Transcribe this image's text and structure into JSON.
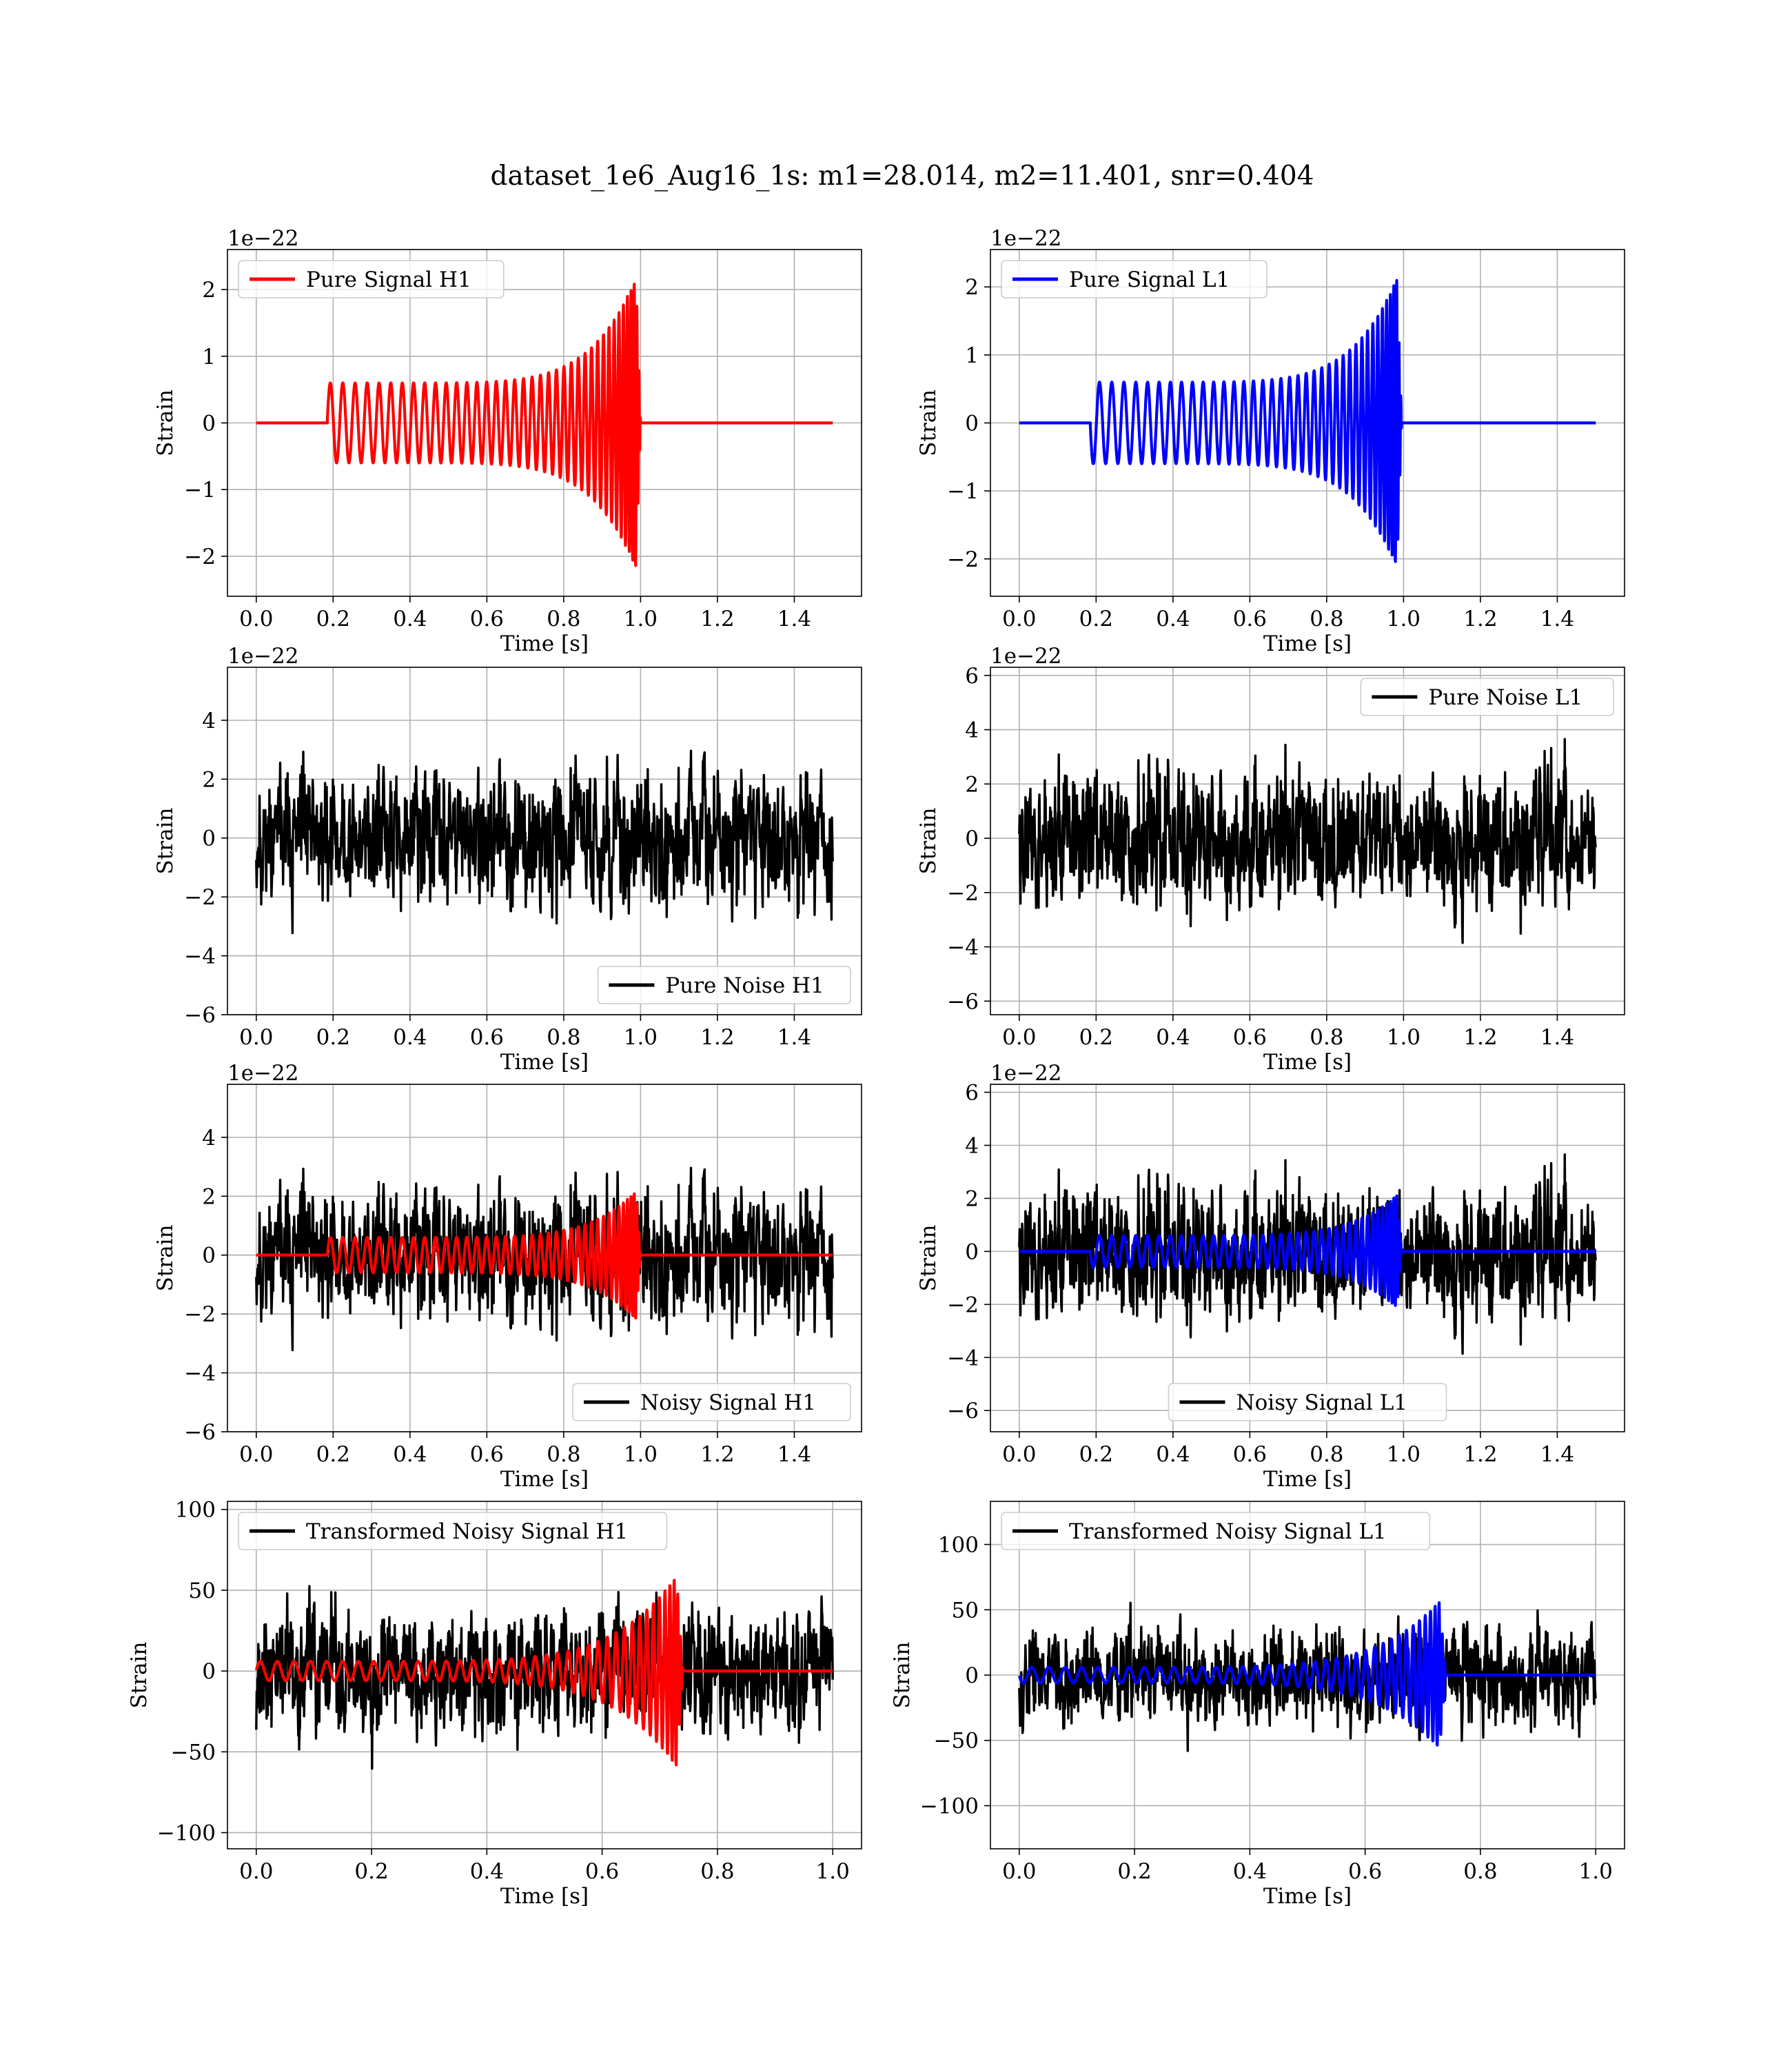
{
  "figure": {
    "title": "dataset_1e6_Aug16_1s: m1=28.014, m2=11.401, snr=0.404"
  },
  "colors": {
    "h1": "#ff0000",
    "l1": "#0000ff",
    "noise": "#000000"
  },
  "chart_data": [
    {
      "id": "pure-signal-h1",
      "type": "line",
      "xlabel": "Time [s]",
      "ylabel": "Strain",
      "offset_label": "1e−22",
      "xlim": [
        -0.075,
        1.575
      ],
      "ylim": [
        -2.6,
        2.6
      ],
      "xticks": [
        0.0,
        0.2,
        0.4,
        0.6,
        0.8,
        1.0,
        1.2,
        1.4
      ],
      "xtick_labels": [
        "0.0",
        "0.2",
        "0.4",
        "0.6",
        "0.8",
        "1.0",
        "1.2",
        "1.4"
      ],
      "yticks": [
        -2,
        -1,
        0,
        1,
        2
      ],
      "ytick_labels": [
        "−2",
        "−1",
        "0",
        "1",
        "2"
      ],
      "legend_loc": "upper left",
      "series": [
        {
          "name": "Pure Signal H1",
          "color": "#ff0000",
          "kind": "chirp",
          "t_start": 0.185,
          "t_end": 1.0,
          "x_end": 1.5,
          "start_amp": 0.6,
          "peak_amp": 2.35,
          "sign": 1,
          "n_cycles": 40
        }
      ]
    },
    {
      "id": "pure-signal-l1",
      "type": "line",
      "xlabel": "Time [s]",
      "ylabel": "Strain",
      "offset_label": "1e−22",
      "xlim": [
        -0.075,
        1.575
      ],
      "ylim": [
        -2.55,
        2.55
      ],
      "xticks": [
        0.0,
        0.2,
        0.4,
        0.6,
        0.8,
        1.0,
        1.2,
        1.4
      ],
      "xtick_labels": [
        "0.0",
        "0.2",
        "0.4",
        "0.6",
        "0.8",
        "1.0",
        "1.2",
        "1.4"
      ],
      "yticks": [
        -2,
        -1,
        0,
        1,
        2
      ],
      "ytick_labels": [
        "−2",
        "−1",
        "0",
        "1",
        "2"
      ],
      "legend_loc": "upper left",
      "series": [
        {
          "name": "Pure Signal L1",
          "color": "#0000ff",
          "kind": "chirp",
          "t_start": 0.185,
          "t_end": 0.995,
          "x_end": 1.5,
          "start_amp": 0.6,
          "peak_amp": 2.3,
          "sign": -1,
          "n_cycles": 40
        }
      ]
    },
    {
      "id": "pure-noise-h1",
      "type": "line",
      "xlabel": "Time [s]",
      "ylabel": "Strain",
      "offset_label": "1e−22",
      "xlim": [
        -0.075,
        1.575
      ],
      "ylim": [
        -6.0,
        5.8
      ],
      "xticks": [
        0.0,
        0.2,
        0.4,
        0.6,
        0.8,
        1.0,
        1.2,
        1.4
      ],
      "xtick_labels": [
        "0.0",
        "0.2",
        "0.4",
        "0.6",
        "0.8",
        "1.0",
        "1.2",
        "1.4"
      ],
      "yticks": [
        -6,
        -4,
        -2,
        0,
        2,
        4
      ],
      "ytick_labels": [
        "−6",
        "−4",
        "−2",
        "0",
        "2",
        "4"
      ],
      "legend_loc": "lower right",
      "series": [
        {
          "name": "Pure Noise H1",
          "color": "#000000",
          "kind": "noise",
          "t0": 0.0,
          "t1": 1.5,
          "amp": 1.8,
          "seed": 11
        }
      ]
    },
    {
      "id": "pure-noise-l1",
      "type": "line",
      "xlabel": "Time [s]",
      "ylabel": "Strain",
      "offset_label": "1e−22",
      "xlim": [
        -0.075,
        1.575
      ],
      "ylim": [
        -6.5,
        6.3
      ],
      "xticks": [
        0.0,
        0.2,
        0.4,
        0.6,
        0.8,
        1.0,
        1.2,
        1.4
      ],
      "xtick_labels": [
        "0.0",
        "0.2",
        "0.4",
        "0.6",
        "0.8",
        "1.0",
        "1.2",
        "1.4"
      ],
      "yticks": [
        -6,
        -4,
        -2,
        0,
        2,
        4,
        6
      ],
      "ytick_labels": [
        "−6",
        "−4",
        "−2",
        "0",
        "2",
        "4",
        "6"
      ],
      "legend_loc": "upper right",
      "series": [
        {
          "name": "Pure Noise L1",
          "color": "#000000",
          "kind": "noise",
          "t0": 0.0,
          "t1": 1.5,
          "amp": 2.0,
          "seed": 23
        }
      ]
    },
    {
      "id": "noisy-signal-h1",
      "type": "line",
      "xlabel": "Time [s]",
      "ylabel": "Strain",
      "offset_label": "1e−22",
      "xlim": [
        -0.075,
        1.575
      ],
      "ylim": [
        -6.0,
        5.8
      ],
      "xticks": [
        0.0,
        0.2,
        0.4,
        0.6,
        0.8,
        1.0,
        1.2,
        1.4
      ],
      "xtick_labels": [
        "0.0",
        "0.2",
        "0.4",
        "0.6",
        "0.8",
        "1.0",
        "1.2",
        "1.4"
      ],
      "yticks": [
        -6,
        -4,
        -2,
        0,
        2,
        4
      ],
      "ytick_labels": [
        "−6",
        "−4",
        "−2",
        "0",
        "2",
        "4"
      ],
      "legend_loc": "lower right",
      "series": [
        {
          "name": "Noisy Signal H1",
          "color": "#000000",
          "kind": "noise",
          "t0": 0.0,
          "t1": 1.5,
          "amp": 1.8,
          "seed": 11
        },
        {
          "name": "",
          "color": "#ff0000",
          "kind": "chirp",
          "t_start": 0.185,
          "t_end": 1.0,
          "x_end": 1.5,
          "start_amp": 0.6,
          "peak_amp": 2.35,
          "sign": 1,
          "n_cycles": 40
        }
      ]
    },
    {
      "id": "noisy-signal-l1",
      "type": "line",
      "xlabel": "Time [s]",
      "ylabel": "Strain",
      "offset_label": "1e−22",
      "xlim": [
        -0.075,
        1.575
      ],
      "ylim": [
        -6.8,
        6.3
      ],
      "xticks": [
        0.0,
        0.2,
        0.4,
        0.6,
        0.8,
        1.0,
        1.2,
        1.4
      ],
      "xtick_labels": [
        "0.0",
        "0.2",
        "0.4",
        "0.6",
        "0.8",
        "1.0",
        "1.2",
        "1.4"
      ],
      "yticks": [
        -6,
        -4,
        -2,
        0,
        2,
        4,
        6
      ],
      "ytick_labels": [
        "−6",
        "−4",
        "−2",
        "0",
        "2",
        "4",
        "6"
      ],
      "legend_loc": "lower center",
      "series": [
        {
          "name": "Noisy Signal L1",
          "color": "#000000",
          "kind": "noise",
          "t0": 0.0,
          "t1": 1.5,
          "amp": 2.0,
          "seed": 23
        },
        {
          "name": "",
          "color": "#0000ff",
          "kind": "chirp",
          "t_start": 0.185,
          "t_end": 0.995,
          "x_end": 1.5,
          "start_amp": 0.6,
          "peak_amp": 2.3,
          "sign": -1,
          "n_cycles": 40
        }
      ]
    },
    {
      "id": "transformed-noisy-signal-h1",
      "type": "line",
      "xlabel": "Time [s]",
      "ylabel": "Strain",
      "offset_label": "",
      "xlim": [
        -0.05,
        1.05
      ],
      "ylim": [
        -110,
        105
      ],
      "xticks": [
        0.0,
        0.2,
        0.4,
        0.6,
        0.8,
        1.0
      ],
      "xtick_labels": [
        "0.0",
        "0.2",
        "0.4",
        "0.6",
        "0.8",
        "1.0"
      ],
      "yticks": [
        -100,
        -50,
        0,
        50,
        100
      ],
      "ytick_labels": [
        "−100",
        "−50",
        "0",
        "50",
        "100"
      ],
      "legend_loc": "upper left",
      "series": [
        {
          "name": "Transformed Noisy Signal H1",
          "color": "#000000",
          "kind": "noise",
          "t0": 0.0,
          "t1": 1.0,
          "amp": 30,
          "seed": 37
        },
        {
          "name": "",
          "color": "#ff0000",
          "kind": "chirp",
          "t_start": 0.0,
          "t_end": 0.74,
          "x_end": 1.0,
          "start_amp": 6,
          "peak_amp": 65,
          "sign": 1,
          "n_cycles": 40
        }
      ]
    },
    {
      "id": "transformed-noisy-signal-l1",
      "type": "line",
      "xlabel": "Time [s]",
      "ylabel": "Strain",
      "offset_label": "",
      "xlim": [
        -0.05,
        1.05
      ],
      "ylim": [
        -133,
        133
      ],
      "xticks": [
        0.0,
        0.2,
        0.4,
        0.6,
        0.8,
        1.0
      ],
      "xtick_labels": [
        "0.0",
        "0.2",
        "0.4",
        "0.6",
        "0.8",
        "1.0"
      ],
      "yticks": [
        -100,
        -50,
        0,
        50,
        100
      ],
      "ytick_labels": [
        "−100",
        "−50",
        "0",
        "50",
        "100"
      ],
      "legend_loc": "upper left",
      "series": [
        {
          "name": "Transformed Noisy Signal L1",
          "color": "#000000",
          "kind": "noise",
          "t0": 0.0,
          "t1": 1.0,
          "amp": 30,
          "seed": 53
        },
        {
          "name": "",
          "color": "#0000ff",
          "kind": "chirp",
          "t_start": 0.0,
          "t_end": 0.74,
          "x_end": 1.0,
          "start_amp": 6,
          "peak_amp": 62,
          "sign": -1,
          "n_cycles": 40
        }
      ]
    }
  ]
}
